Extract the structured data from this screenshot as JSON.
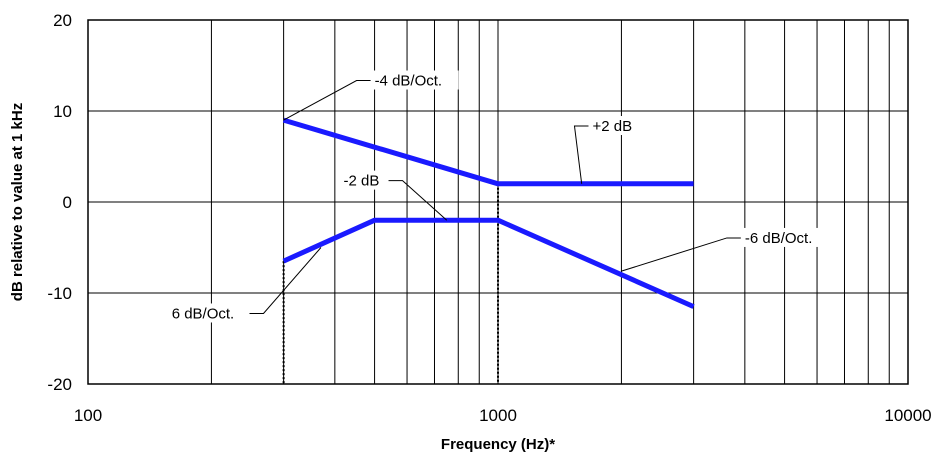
{
  "chart_data": {
    "type": "line",
    "title": "",
    "xlabel": "Frequency (Hz)*",
    "ylabel": "dB relative to value at 1 kHz",
    "xscale": "log",
    "xlim": [
      100,
      10000
    ],
    "ylim": [
      -20,
      20
    ],
    "grid": true,
    "x_ticks": [
      100,
      1000,
      10000
    ],
    "x_tick_labels": [
      "100",
      "1000",
      "10000"
    ],
    "y_ticks": [
      20,
      10,
      0,
      -10,
      -20
    ],
    "y_tick_labels": [
      "20",
      "10",
      "0",
      "-10",
      "-20"
    ],
    "line_color": "#1a1aff",
    "series": [
      {
        "x": [
          300,
          1000,
          3000
        ],
        "y": [
          9,
          2,
          2
        ]
      },
      {
        "x": [
          300,
          500,
          1000,
          3000
        ],
        "y": [
          -6.5,
          -2,
          -2,
          -11.5
        ]
      }
    ],
    "drop_lines": [
      {
        "x": 300,
        "y_from": -6.5,
        "y_to": -20
      },
      {
        "x": 1000,
        "y_from": 2,
        "y_to": -20
      }
    ],
    "annotations": [
      {
        "text": "-4 dB/Oct.",
        "x": 500,
        "y": 12.8,
        "point_x": 300,
        "point_y": 9
      },
      {
        "text": "+2 dB",
        "x": 1700,
        "y": 7.8,
        "point_x": 1600,
        "point_y": 2
      },
      {
        "text": "-2 dB",
        "x": 420,
        "y": 1.8,
        "point_x": 750,
        "point_y": -2
      },
      {
        "text": "-6 dB/Oct.",
        "x": 4000,
        "y": -4.5,
        "point_x": 2000,
        "point_y": -7.6
      },
      {
        "text": "6 dB/Oct.",
        "x": 160,
        "y": -12.8,
        "point_x": 370,
        "point_y": -5
      }
    ]
  }
}
